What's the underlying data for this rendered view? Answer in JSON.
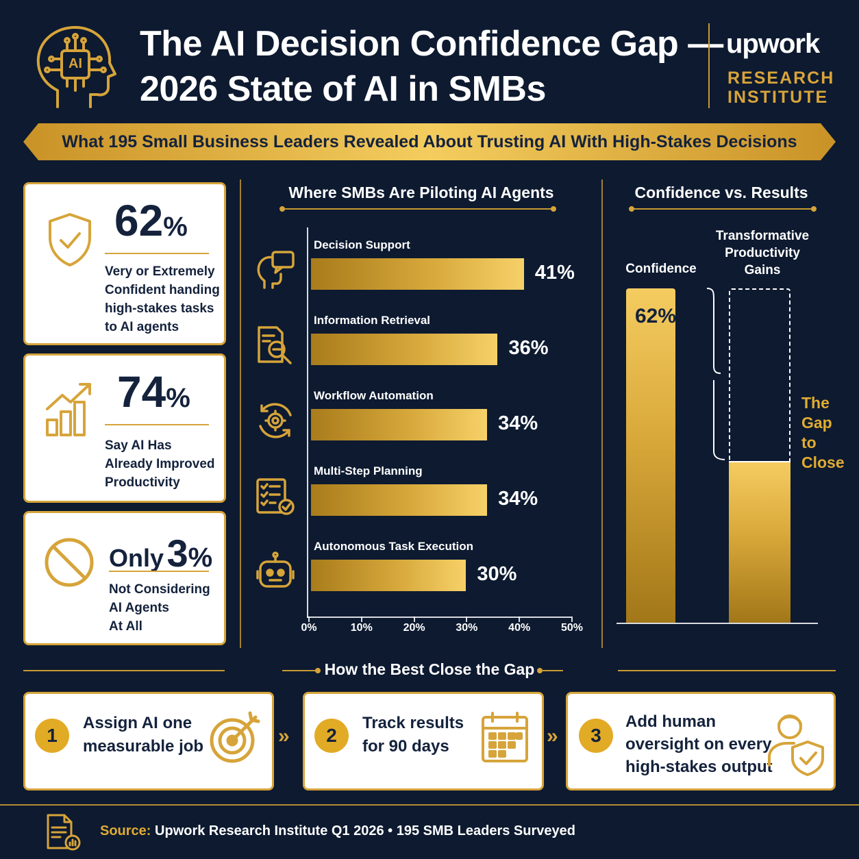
{
  "header": {
    "title_line1": "The AI Decision Confidence Gap —",
    "title_line2": "2026 State of AI in SMBs",
    "logo_icon_text": "AI",
    "brand_name": "upwork",
    "brand_sub1": "RESEARCH",
    "brand_sub2": "INSTITUTE"
  },
  "ribbon": {
    "text": "What 195 Small Business Leaders Revealed About Trusting AI With High-Stakes Decisions"
  },
  "stats": [
    {
      "prefix": "",
      "value": "62",
      "unit": "%",
      "desc": [
        "Very or Extremely",
        "Confident handing",
        "high-stakes tasks",
        "to AI agents"
      ],
      "icon": "shield-check-icon"
    },
    {
      "prefix": "",
      "value": "74",
      "unit": "%",
      "desc": [
        "Say AI Has",
        "Already Improved",
        "Productivity"
      ],
      "icon": "growth-chart-icon"
    },
    {
      "prefix": "Only",
      "value": "3",
      "unit": "%",
      "desc": [
        "Not Considering",
        "AI Agents",
        "At All"
      ],
      "icon": "prohibited-icon"
    }
  ],
  "chart_data": [
    {
      "type": "bar",
      "orientation": "horizontal",
      "title": "Where SMBs Are Piloting AI Agents",
      "categories": [
        "Decision Support",
        "Information Retrieval",
        "Workflow Automation",
        "Multi-Step Planning",
        "Autonomous Task Execution"
      ],
      "values": [
        41,
        36,
        34,
        34,
        30
      ],
      "value_labels": [
        "41%",
        "36%",
        "34%",
        "34%",
        "30%"
      ],
      "icons": [
        "head-chat-icon",
        "document-search-icon",
        "gear-cycle-icon",
        "checklist-icon",
        "robot-icon"
      ],
      "xlim": [
        0,
        50
      ],
      "ticks": [
        "0%",
        "10%",
        "20%",
        "30%",
        "40%",
        "50%"
      ],
      "grid": false
    },
    {
      "type": "bar",
      "title": "Confidence vs. Results",
      "categories": [
        "Confidence",
        "Transformative Productivity Gains"
      ],
      "category_lines": [
        [
          "Confidence"
        ],
        [
          "Transformative",
          "Productivity",
          "Gains"
        ]
      ],
      "values": [
        62,
        30
      ],
      "value_labels": [
        "62%",
        ""
      ],
      "annotation": [
        "The",
        "Gap",
        "to",
        "Close"
      ],
      "ylim": [
        0,
        62
      ],
      "grid": false
    }
  ],
  "steps": {
    "title": "How the Best Close the Gap",
    "items": [
      {
        "num": "1",
        "lines": [
          "Assign AI one",
          "measurable job"
        ],
        "icon": "target-icon"
      },
      {
        "num": "2",
        "lines": [
          "Track results",
          "for 90 days"
        ],
        "icon": "calendar-icon"
      },
      {
        "num": "3",
        "lines": [
          "Add human",
          "oversight on every",
          "high-stakes output"
        ],
        "icon": "person-shield-icon"
      }
    ],
    "separator": "»"
  },
  "footer": {
    "source_label": "Source:",
    "source_text": "Upwork Research Institute Q1 2026 • 195 SMB Leaders Surveyed"
  },
  "colors": {
    "background": "#0d1a30",
    "gold": "#d6a43a",
    "navy": "#14223c",
    "white": "#ffffff"
  }
}
